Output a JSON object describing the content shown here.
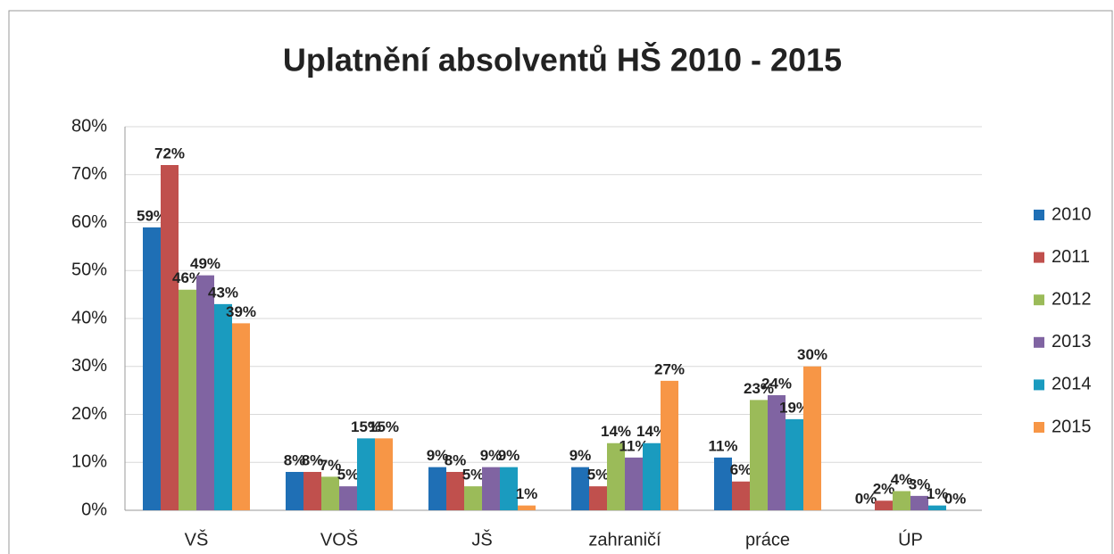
{
  "chart_data": {
    "type": "bar",
    "title": "Uplatnění absolventů HŠ  2010 - 2015",
    "categories": [
      "VŠ",
      "VOŠ",
      "JŠ",
      "zahraničí",
      "práce",
      "ÚP"
    ],
    "series": [
      {
        "name": "2010",
        "color": "#1f6fb5",
        "values": [
          59,
          8,
          9,
          9,
          11,
          0
        ],
        "value_labels": [
          "59%",
          "8%",
          "9%",
          "9%",
          "11%",
          "0%"
        ]
      },
      {
        "name": "2011",
        "color": "#c0504d",
        "values": [
          72,
          8,
          8,
          5,
          6,
          2
        ],
        "value_labels": [
          "72%",
          "8%",
          "8%",
          "5%",
          "6%",
          "2%"
        ]
      },
      {
        "name": "2012",
        "color": "#9bbb59",
        "values": [
          46,
          7,
          5,
          14,
          23,
          4
        ],
        "value_labels": [
          "46%",
          "7%",
          "5%",
          "14%",
          "23%",
          "4%"
        ]
      },
      {
        "name": "2013",
        "color": "#8064a2",
        "values": [
          49,
          5,
          9,
          11,
          24,
          3
        ],
        "value_labels": [
          "49%",
          "5%",
          "9%",
          "11%",
          "24%",
          "3%"
        ]
      },
      {
        "name": "2014",
        "color": "#1a9bbf",
        "values": [
          43,
          15,
          9,
          14,
          19,
          1
        ],
        "value_labels": [
          "43%",
          "15%",
          "9%",
          "14%",
          "19%",
          "1%"
        ]
      },
      {
        "name": "2015",
        "color": "#f79646",
        "values": [
          39,
          15,
          1,
          27,
          30,
          0
        ],
        "value_labels": [
          "39%",
          "15%",
          "1%",
          "27%",
          "30%",
          "0%"
        ]
      }
    ],
    "ylim": [
      0,
      80
    ],
    "yticks": [
      {
        "value": 0,
        "label": "0%"
      },
      {
        "value": 10,
        "label": "10%"
      },
      {
        "value": 20,
        "label": "20%"
      },
      {
        "value": 30,
        "label": "30%"
      },
      {
        "value": 40,
        "label": "40%"
      },
      {
        "value": 50,
        "label": "50%"
      },
      {
        "value": 60,
        "label": "60%"
      },
      {
        "value": 70,
        "label": "70%"
      },
      {
        "value": 80,
        "label": "80%"
      }
    ],
    "grid": true,
    "legend": "right"
  }
}
